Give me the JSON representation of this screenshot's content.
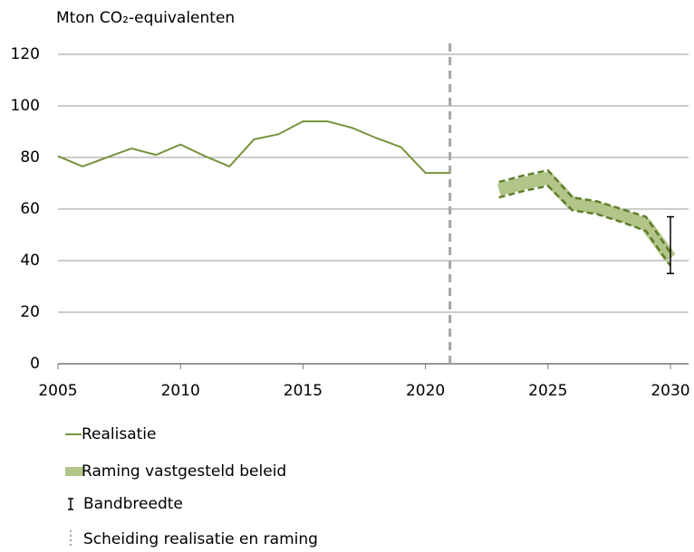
{
  "chart_data": {
    "type": "line",
    "y_label": "Mton CO₂-equivalenten",
    "xlim": [
      2005,
      2030
    ],
    "xticks": [
      2005,
      2010,
      2015,
      2020,
      2025,
      2030
    ],
    "ylim": [
      0,
      120
    ],
    "yticks": [
      0,
      20,
      40,
      60,
      80,
      100,
      120
    ],
    "grid": true,
    "series": [
      {
        "name": "Realisatie",
        "color": "#77933c",
        "x": [
          2005,
          2006,
          2007,
          2008,
          2009,
          2010,
          2011,
          2012,
          2013,
          2014,
          2015,
          2016,
          2017,
          2018,
          2019,
          2020,
          2021
        ],
        "values": [
          80.5,
          76.5,
          80,
          83.5,
          81,
          85,
          80.5,
          76.5,
          87,
          89,
          94,
          94,
          91.5,
          87.5,
          84,
          74,
          74
        ]
      },
      {
        "name": "Raming vastgesteld beleid",
        "color": "#b3c68a",
        "edge_color": "#5e7f2b",
        "x": [
          2023,
          2024,
          2025,
          2026,
          2027,
          2028,
          2029,
          2030
        ],
        "values": [
          67.5,
          70,
          72,
          62,
          60.5,
          57.5,
          54,
          41
        ],
        "upper": [
          70.5,
          73,
          75,
          64.5,
          63,
          60,
          57,
          43
        ],
        "lower": [
          64.5,
          67,
          69,
          59.5,
          58,
          55,
          51.5,
          38
        ]
      }
    ],
    "range": {
      "name": "Bandbreedte",
      "x": 2030,
      "low": 35,
      "high": 57
    },
    "separator": {
      "name": "Scheiding realisatie en raming",
      "x": 2021
    }
  }
}
